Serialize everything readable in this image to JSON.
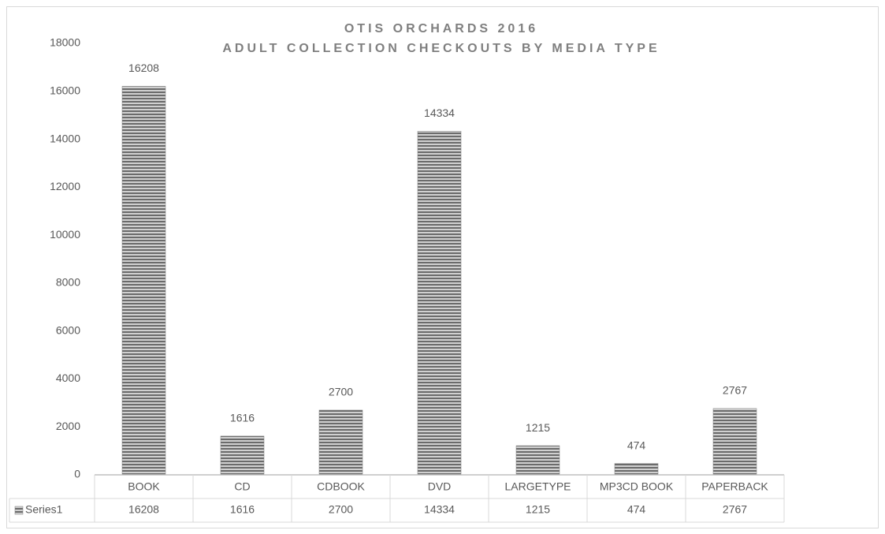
{
  "chart_data": {
    "type": "bar",
    "title": "OTIS ORCHARDS 2016",
    "subtitle": "ADULT COLLECTION CHECKOUTS BY MEDIA TYPE",
    "categories": [
      "BOOK",
      "CD",
      "CDBOOK",
      "DVD",
      "LARGETYPE",
      "MP3CD BOOK",
      "PAPERBACK"
    ],
    "series": [
      {
        "name": "Series1",
        "color": "#7f7f7f",
        "values": [
          16208,
          1616,
          2700,
          14334,
          1215,
          474,
          2767
        ]
      }
    ],
    "ylim": [
      0,
      18000
    ],
    "yticks": [
      0,
      2000,
      4000,
      6000,
      8000,
      10000,
      12000,
      14000,
      16000,
      18000
    ],
    "grid": false,
    "data_table": true
  }
}
